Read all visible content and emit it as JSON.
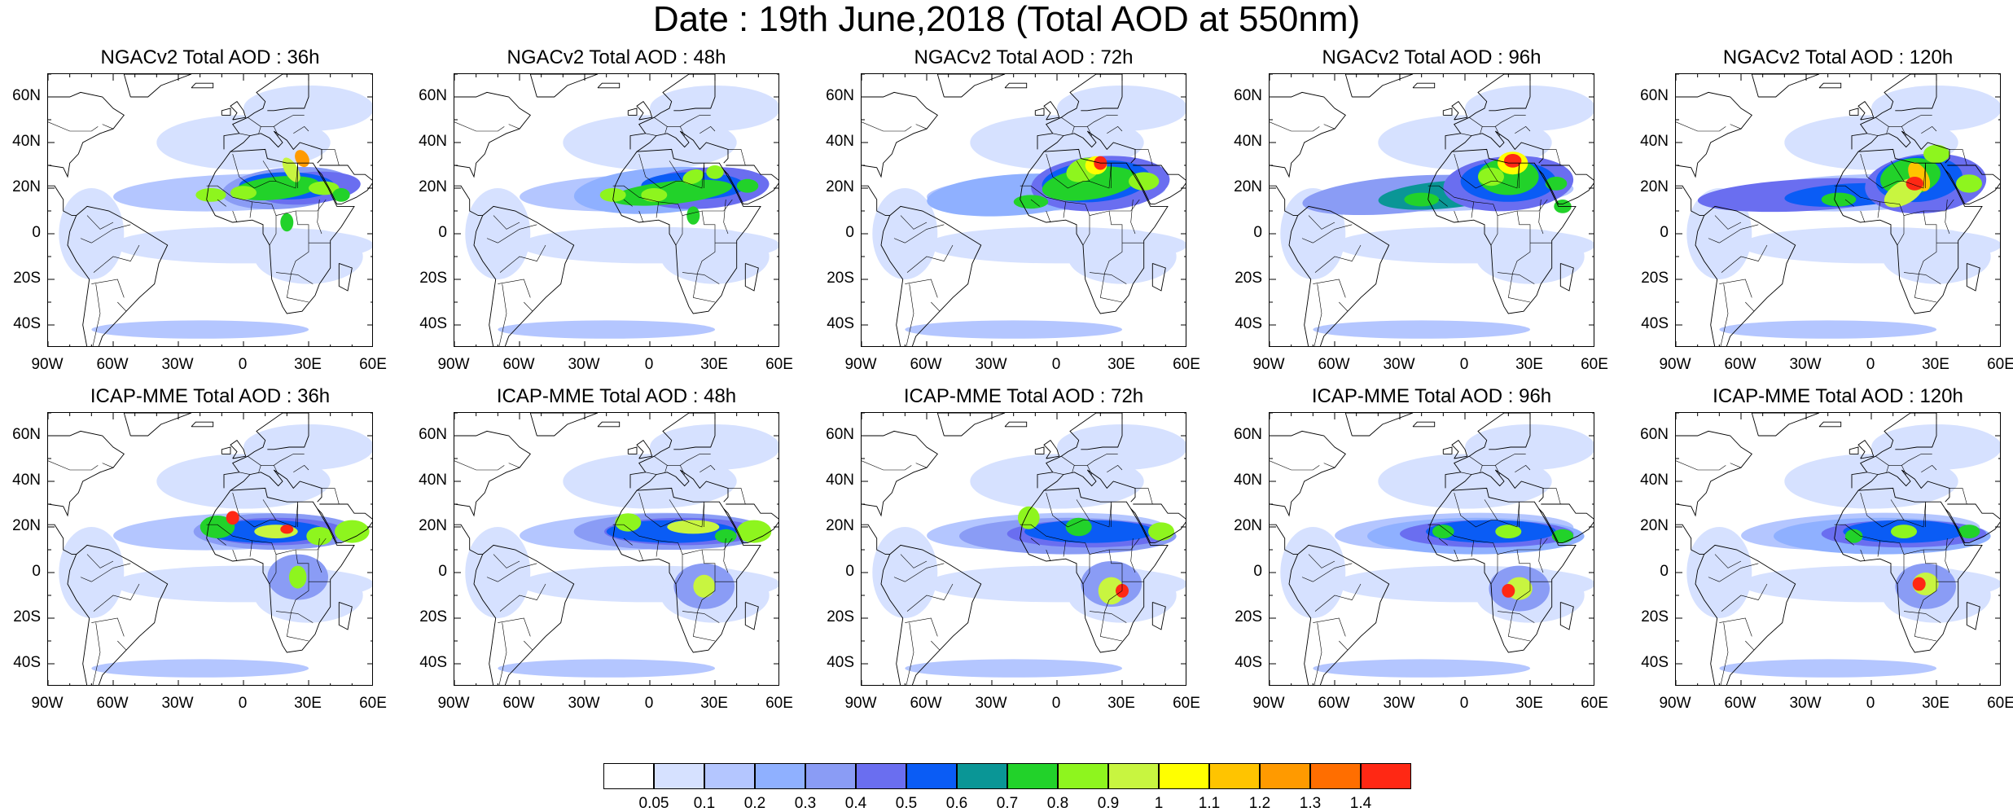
{
  "figure": {
    "title": "Date : 19th June,2018 (Total AOD at 550nm)",
    "lat_labels": [
      "60N",
      "40N",
      "20N",
      "0",
      "20S",
      "40S"
    ],
    "lon_labels": [
      "90W",
      "60W",
      "30W",
      "0",
      "30E",
      "60E"
    ]
  },
  "panels": [
    {
      "title": "NGACv2 Total AOD : 36h"
    },
    {
      "title": "NGACv2 Total AOD : 48h"
    },
    {
      "title": "NGACv2 Total AOD : 72h"
    },
    {
      "title": "NGACv2 Total AOD : 96h"
    },
    {
      "title": "NGACv2 Total AOD : 120h"
    },
    {
      "title": "ICAP-MME Total AOD : 36h"
    },
    {
      "title": "ICAP-MME Total AOD : 48h"
    },
    {
      "title": "ICAP-MME Total AOD : 72h"
    },
    {
      "title": "ICAP-MME Total AOD : 96h"
    },
    {
      "title": "ICAP-MME Total AOD : 120h"
    }
  ],
  "colorbar": {
    "labels": [
      "0.05",
      "0.1",
      "0.2",
      "0.3",
      "0.4",
      "0.5",
      "0.6",
      "0.7",
      "0.8",
      "0.9",
      "1",
      "1.1",
      "1.2",
      "1.3",
      "1.4"
    ],
    "colors": [
      "#ffffff",
      "#d6e1ff",
      "#b4c6ff",
      "#8fb0ff",
      "#8a9cf5",
      "#6a6ef0",
      "#0a5cf5",
      "#0a9696",
      "#22d22a",
      "#8ef51e",
      "#c8f540",
      "#ffff00",
      "#ffc400",
      "#ff9a00",
      "#ff6e00",
      "#ff2814"
    ]
  }
}
